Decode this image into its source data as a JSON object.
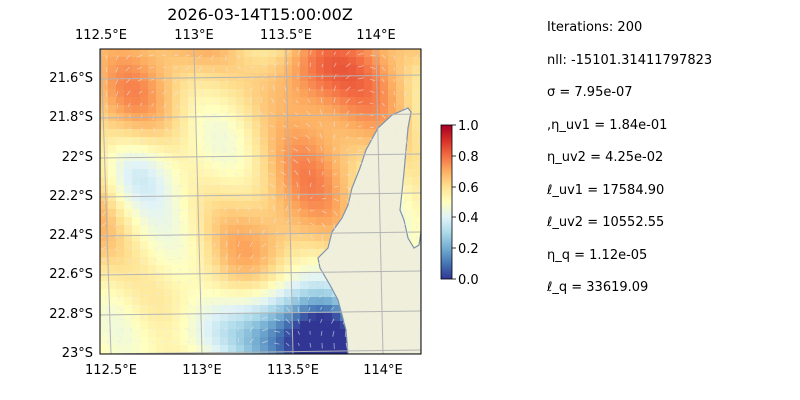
{
  "chart_data": {
    "type": "heatmap",
    "title": "2026-03-14T15:00:00Z",
    "xlabel": "",
    "ylabel": "",
    "x_ticks_top": [
      "112.5°E",
      "113°E",
      "113.5°E",
      "114°E"
    ],
    "x_ticks_bottom": [
      "112.5°E",
      "113°E",
      "113.5°E",
      "114°E"
    ],
    "y_ticks": [
      "21.6°S",
      "21.8°S",
      "22°S",
      "22.2°S",
      "22.4°S",
      "22.6°S",
      "22.8°S",
      "23°S"
    ],
    "lon_range": [
      112.5,
      114.2
    ],
    "lat_range": [
      -23.0,
      -21.5
    ],
    "grid": true,
    "overlay": "velocity quiver arrows",
    "colorbar": {
      "min": 0.0,
      "max": 1.0,
      "ticks": [
        "0.0",
        "0.2",
        "0.4",
        "0.6",
        "0.8",
        "1.0"
      ],
      "colormap": "RdYlBu_r"
    },
    "colors": {
      "ocean": "#9ab9e0",
      "land": "#efefdb",
      "coast": "#7f93ad",
      "grid": "#b4b4b4"
    }
  },
  "params": [
    "Iterations: 200",
    "nll: -15101.31411797823",
    "σ = 7.95e-07",
    ",η_uv1 = 1.84e-01",
    "η_uv2 = 4.25e-02",
    "ℓ_uv1 = 17584.90",
    "ℓ_uv2 = 10552.55",
    "η_q = 1.12e-05",
    "ℓ_q = 33619.09"
  ]
}
